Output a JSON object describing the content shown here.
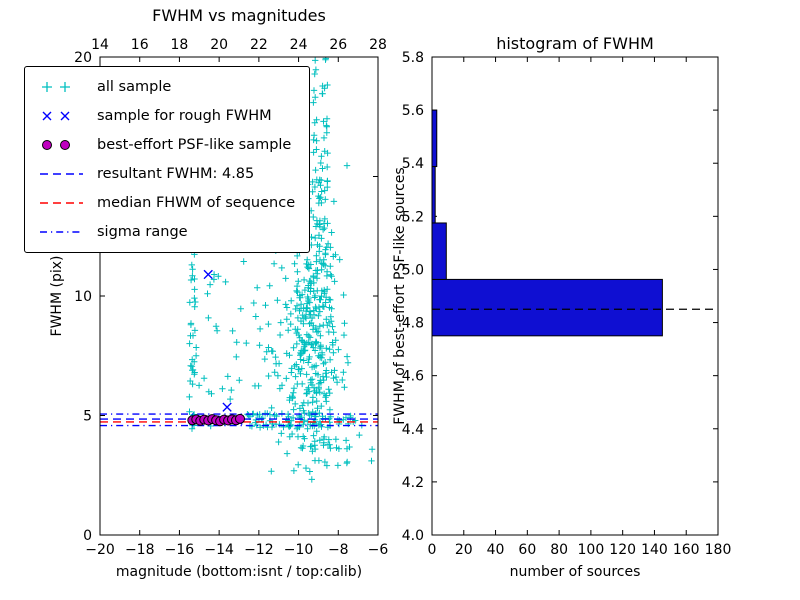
{
  "figure": {
    "background": "#ffffff"
  },
  "legend": {
    "items": [
      {
        "label": "all sample",
        "marker": "plus",
        "color": "#00bfbf"
      },
      {
        "label": "sample for rough FWHM",
        "marker": "x",
        "color": "#0000ff"
      },
      {
        "label": "best-effort PSF-like sample",
        "marker": "circle",
        "color": "#bf00bf",
        "edge": "#000000"
      },
      {
        "label": "resultant FWHM: 4.85",
        "marker": "line",
        "color": "#0000ff",
        "dash": "8,5"
      },
      {
        "label": "median FHWM of sequence",
        "marker": "line",
        "color": "#ff0000",
        "dash": "8,5"
      },
      {
        "label": "sigma range",
        "marker": "line",
        "color": "#0000ff",
        "dash": "7,4,1.2,4"
      }
    ]
  },
  "chart_data": [
    {
      "type": "scatter",
      "title": "FWHM vs magnitudes",
      "xlabel": "magnitude (bottom:isnt / top:calib)",
      "ylabel": "FWHM (pix)",
      "xlim": [
        -20,
        -6
      ],
      "ylim": [
        0,
        20
      ],
      "xticks": {
        "values": [
          -20,
          -18,
          -16,
          -14,
          -12,
          -10,
          -8,
          -6
        ],
        "labels": [
          "−20",
          "−18",
          "−16",
          "−14",
          "−12",
          "−10",
          "−8",
          "−6"
        ]
      },
      "top_xticks": {
        "labels": [
          "14",
          "16",
          "18",
          "20",
          "22",
          "24",
          "26",
          "28"
        ]
      },
      "yticks": {
        "values": [
          0,
          5,
          10,
          15,
          20
        ],
        "labels": [
          "0",
          "5",
          "10",
          "15",
          "20"
        ]
      },
      "series": [
        {
          "name": "all sample",
          "marker": "plus",
          "color": "#00bfbf",
          "clusters": [
            {
              "dist": "uniform",
              "n": 40,
              "x": [
                -15.5,
                -15.15
              ],
              "y": [
                4.4,
                12.2
              ]
            },
            {
              "dist": "uniform",
              "n": 26,
              "x": [
                -15.15,
                -12.5
              ],
              "y": [
                4.4,
                11.6
              ]
            },
            {
              "dist": "uniform",
              "n": 18,
              "x": [
                -12.5,
                -10.9
              ],
              "y": [
                4.6,
                10.5
              ]
            },
            {
              "dist": "gauss",
              "n": 380,
              "cx": -9.35,
              "cy": 8.2,
              "sx": 0.75,
              "sy": 3.3,
              "clipx": [
                -11.9,
                -6.9
              ],
              "clipy": [
                2.6,
                20
              ]
            },
            {
              "dist": "uniform",
              "n": 60,
              "x": [
                -9.3,
                -8.5
              ],
              "y": [
                11,
                20
              ]
            },
            {
              "dist": "uniform",
              "n": 80,
              "x": [
                -12.6,
                -6.5
              ],
              "y": [
                4.5,
                5.1
              ]
            },
            {
              "dist": "uniform",
              "n": 10,
              "x": [
                -11.4,
                -6.2
              ],
              "y": [
                2.3,
                4.3
              ]
            }
          ]
        },
        {
          "name": "sample for rough FWHM",
          "marker": "x",
          "color": "#0000ff",
          "points": [
            [
              -14.55,
              10.9
            ],
            [
              -13.6,
              5.35
            ],
            [
              -15.1,
              4.8
            ],
            [
              -14.2,
              4.82
            ],
            [
              -13.05,
              4.8
            ]
          ]
        },
        {
          "name": "best-effort PSF-like sample",
          "marker": "circle",
          "fill": "#bf00bf",
          "edge": "#000000",
          "points": [
            [
              -15.35,
              4.8
            ],
            [
              -15.15,
              4.84
            ],
            [
              -14.95,
              4.78
            ],
            [
              -14.75,
              4.83
            ],
            [
              -14.55,
              4.79
            ],
            [
              -14.35,
              4.85
            ],
            [
              -14.15,
              4.8
            ],
            [
              -13.95,
              4.76
            ],
            [
              -13.75,
              4.83
            ],
            [
              -13.55,
              4.79
            ],
            [
              -13.35,
              4.84
            ],
            [
              -13.15,
              4.8
            ],
            [
              -12.95,
              4.86
            ]
          ]
        }
      ],
      "hlines": [
        {
          "name": "resultant FWHM",
          "y": 4.85,
          "color": "#0000ff",
          "dash": "8,5"
        },
        {
          "name": "median FHWM of sequence",
          "y": 4.73,
          "color": "#ff0000",
          "dash": "8,5"
        },
        {
          "name": "sigma range low",
          "y": 4.58,
          "color": "#0000ff",
          "dash": "7,4,1.2,4"
        },
        {
          "name": "sigma range high",
          "y": 5.06,
          "color": "#0000ff",
          "dash": "7,4,1.2,4"
        }
      ]
    },
    {
      "type": "bar-horizontal",
      "title": "histogram of FWHM",
      "xlabel": "number of sources",
      "ylabel": "FWHM of best-effort PSF-like sources",
      "xlim": [
        0,
        180
      ],
      "ylim": [
        4.0,
        5.8
      ],
      "xticks": {
        "values": [
          0,
          20,
          40,
          60,
          80,
          100,
          120,
          140,
          160,
          180
        ],
        "labels": [
          "0",
          "20",
          "40",
          "60",
          "80",
          "100",
          "120",
          "140",
          "160",
          "180"
        ]
      },
      "yticks": {
        "values": [
          4.0,
          4.2,
          4.4,
          4.6,
          4.8,
          5.0,
          5.2,
          5.4,
          5.6,
          5.8
        ],
        "labels": [
          "4.0",
          "4.2",
          "4.4",
          "4.6",
          "4.8",
          "5.0",
          "5.2",
          "5.4",
          "5.6",
          "5.8"
        ]
      },
      "bin_edges": [
        4.75,
        4.9625,
        5.175,
        5.3875,
        5.6
      ],
      "counts": [
        145,
        9,
        2,
        3
      ],
      "bar_color": "#0f0fd2",
      "bar_edge": "#000000",
      "dashed_line": {
        "y": 4.85,
        "color": "#000000",
        "dash": "8,5"
      }
    }
  ]
}
